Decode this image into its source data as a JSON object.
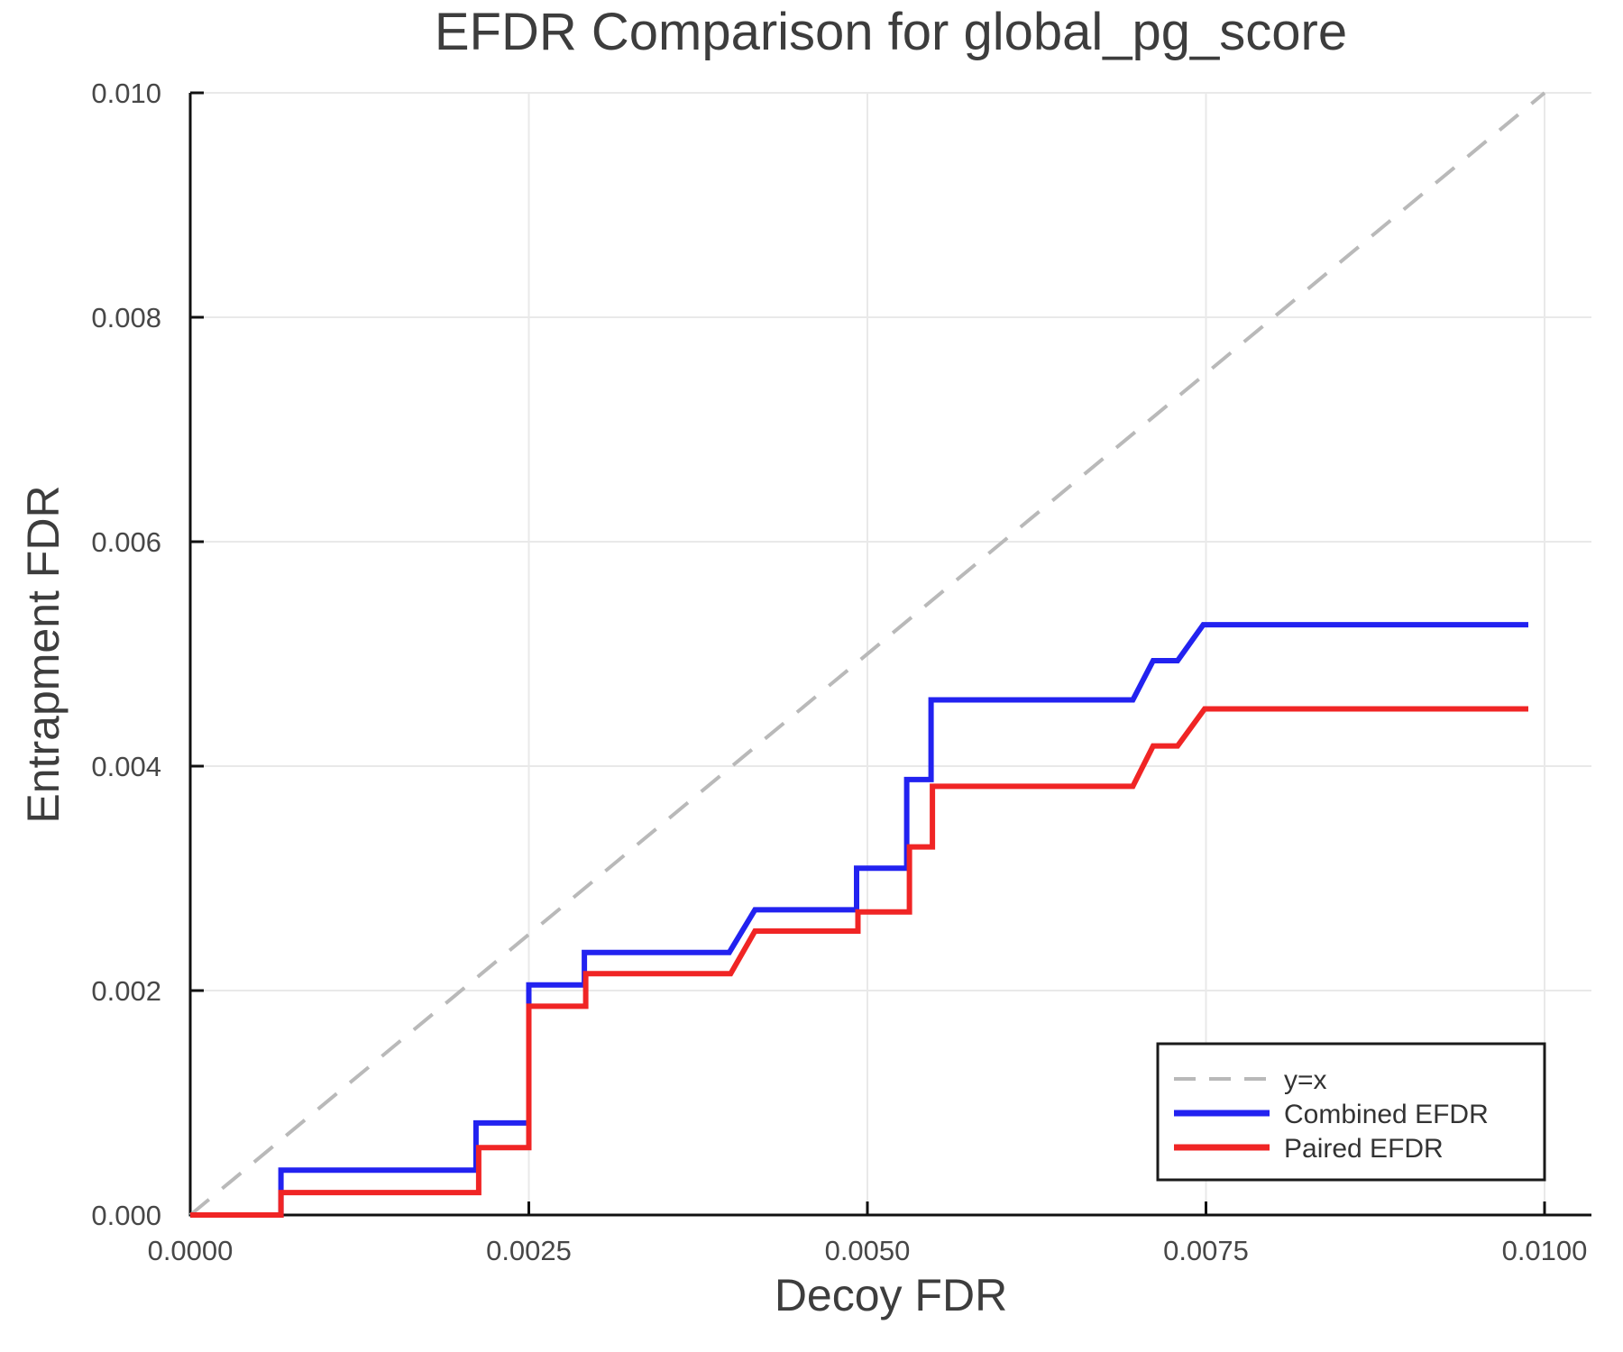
{
  "chart_data": {
    "type": "line",
    "title": "EFDR Comparison for global_pg_score",
    "xlabel": "Decoy FDR",
    "ylabel": "Entrapment FDR",
    "xlim": [
      0.0,
      0.010346
    ],
    "ylim": [
      0.0,
      0.01
    ],
    "grid": true,
    "xticks": {
      "values": [
        0.0,
        0.0025,
        0.005,
        0.0075,
        0.01
      ],
      "labels": [
        "0.0000",
        "0.0025",
        "0.0050",
        "0.0075",
        "0.0100"
      ]
    },
    "yticks": {
      "values": [
        0.0,
        0.002,
        0.004,
        0.006,
        0.008,
        0.01
      ],
      "labels": [
        "0.000",
        "0.002",
        "0.004",
        "0.006",
        "0.008",
        "0.010"
      ]
    },
    "legend": {
      "position": "lower right",
      "entries": [
        "y=x",
        "Combined EFDR",
        "Paired EFDR"
      ]
    },
    "series": [
      {
        "name": "y=x",
        "color": "#b9b9b9",
        "style": "dashed",
        "width": 4,
        "points": [
          [
            0.0,
            0.0
          ],
          [
            0.01,
            0.01
          ]
        ]
      },
      {
        "name": "Combined EFDR",
        "color": "#2222f0",
        "style": "solid",
        "width": 6,
        "points": [
          [
            0.0,
            0.0
          ],
          [
            0.00067,
            0.0
          ],
          [
            0.00067,
            0.0004
          ],
          [
            0.00211,
            0.0004
          ],
          [
            0.00211,
            0.00082
          ],
          [
            0.0025,
            0.00082
          ],
          [
            0.0025,
            0.00205
          ],
          [
            0.00291,
            0.00205
          ],
          [
            0.00291,
            0.00234
          ],
          [
            0.00398,
            0.00234
          ],
          [
            0.00417,
            0.00272
          ],
          [
            0.00492,
            0.00272
          ],
          [
            0.00492,
            0.00309
          ],
          [
            0.00529,
            0.00309
          ],
          [
            0.00529,
            0.00388
          ],
          [
            0.00547,
            0.00388
          ],
          [
            0.00547,
            0.00459
          ],
          [
            0.00696,
            0.00459
          ],
          [
            0.00711,
            0.00494
          ],
          [
            0.00729,
            0.00494
          ],
          [
            0.00748,
            0.00526
          ],
          [
            0.00988,
            0.00526
          ]
        ]
      },
      {
        "name": "Paired EFDR",
        "color": "#f02525",
        "style": "solid",
        "width": 6,
        "points": [
          [
            0.0,
            0.0
          ],
          [
            0.00067,
            0.0
          ],
          [
            0.00067,
            0.0002
          ],
          [
            0.00213,
            0.0002
          ],
          [
            0.00213,
            0.0006
          ],
          [
            0.0025,
            0.0006
          ],
          [
            0.0025,
            0.00186
          ],
          [
            0.00292,
            0.00186
          ],
          [
            0.00292,
            0.00215
          ],
          [
            0.00399,
            0.00215
          ],
          [
            0.00417,
            0.00253
          ],
          [
            0.00493,
            0.00253
          ],
          [
            0.00493,
            0.0027
          ],
          [
            0.00531,
            0.0027
          ],
          [
            0.00531,
            0.00328
          ],
          [
            0.00548,
            0.00328
          ],
          [
            0.00548,
            0.00382
          ],
          [
            0.00696,
            0.00382
          ],
          [
            0.00711,
            0.00418
          ],
          [
            0.00729,
            0.00418
          ],
          [
            0.00749,
            0.00451
          ],
          [
            0.00988,
            0.00451
          ]
        ]
      }
    ]
  },
  "colors": {
    "text": "#3d3d3d",
    "tick_text": "#474747",
    "grid": "#e9e9e9",
    "spine": "#111111",
    "legend_border": "#1a1a1a",
    "background": "#ffffff"
  }
}
